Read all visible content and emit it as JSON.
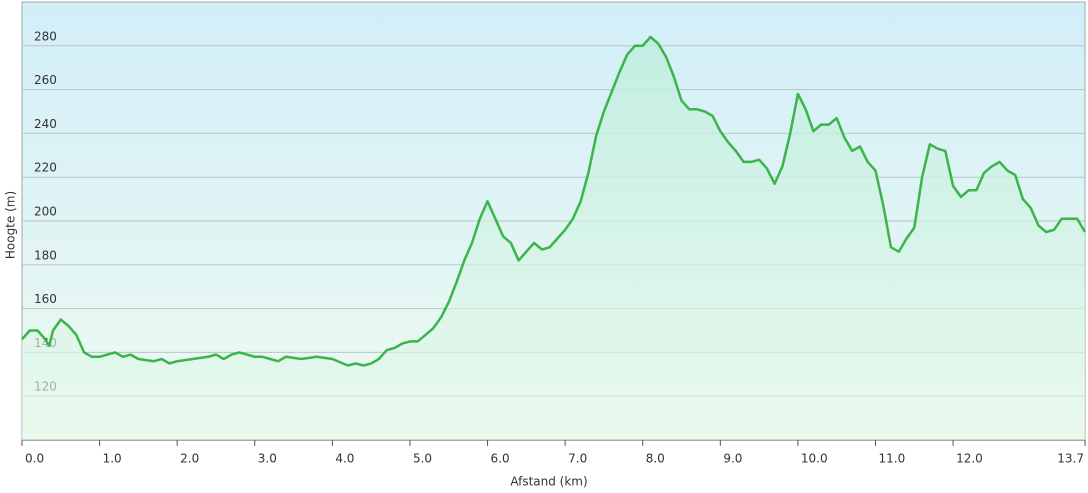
{
  "chart_data": {
    "type": "area",
    "xlabel": "Afstand  (km)",
    "ylabel": "Hoogte (m)",
    "color": "#3ab54a",
    "grid": true,
    "xlim": [
      0,
      13.7
    ],
    "ylim": [
      100,
      300
    ],
    "yticks": [
      120,
      140,
      160,
      180,
      200,
      220,
      240,
      260,
      280
    ],
    "xticks": [
      {
        "value": 0,
        "label": "0.0"
      },
      {
        "value": 1,
        "label": "1.0"
      },
      {
        "value": 2,
        "label": "2.0"
      },
      {
        "value": 3,
        "label": "3.0"
      },
      {
        "value": 4,
        "label": "4.0"
      },
      {
        "value": 5,
        "label": "5.0"
      },
      {
        "value": 6,
        "label": "6.0"
      },
      {
        "value": 7,
        "label": "7.0"
      },
      {
        "value": 8,
        "label": "8.0"
      },
      {
        "value": 9,
        "label": "9.0"
      },
      {
        "value": 10,
        "label": "10.0"
      },
      {
        "value": 11,
        "label": "11.0"
      },
      {
        "value": 12,
        "label": "12.0"
      },
      {
        "value": 13.7,
        "label": "13.7"
      }
    ],
    "x": [
      0.0,
      0.1,
      0.2,
      0.3,
      0.35,
      0.4,
      0.5,
      0.6,
      0.7,
      0.8,
      0.9,
      1.0,
      1.1,
      1.2,
      1.3,
      1.4,
      1.5,
      1.7,
      1.8,
      1.9,
      2.0,
      2.2,
      2.4,
      2.5,
      2.6,
      2.7,
      2.8,
      3.0,
      3.1,
      3.2,
      3.3,
      3.4,
      3.6,
      3.8,
      4.0,
      4.2,
      4.3,
      4.4,
      4.5,
      4.6,
      4.7,
      4.8,
      4.9,
      5.0,
      5.1,
      5.2,
      5.3,
      5.4,
      5.5,
      5.6,
      5.7,
      5.8,
      5.9,
      6.0,
      6.1,
      6.2,
      6.3,
      6.4,
      6.5,
      6.6,
      6.7,
      6.8,
      6.9,
      7.0,
      7.1,
      7.2,
      7.3,
      7.4,
      7.5,
      7.6,
      7.7,
      7.8,
      7.9,
      8.0,
      8.1,
      8.2,
      8.3,
      8.4,
      8.5,
      8.6,
      8.7,
      8.8,
      8.9,
      9.0,
      9.1,
      9.2,
      9.3,
      9.4,
      9.5,
      9.6,
      9.7,
      9.8,
      9.9,
      10.0,
      10.1,
      10.2,
      10.3,
      10.4,
      10.5,
      10.6,
      10.7,
      10.8,
      10.9,
      11.0,
      11.1,
      11.2,
      11.3,
      11.4,
      11.5,
      11.6,
      11.7,
      11.8,
      11.9,
      12.0,
      12.1,
      12.2,
      12.3,
      12.4,
      12.5,
      12.6,
      12.7,
      12.8,
      12.9,
      13.0,
      13.1,
      13.2,
      13.3,
      13.4,
      13.5,
      13.6,
      13.7
    ],
    "values": [
      146,
      150,
      150,
      146,
      143,
      150,
      155,
      152,
      148,
      140,
      138,
      138,
      139,
      140,
      138,
      139,
      137,
      136,
      137,
      135,
      136,
      137,
      138,
      139,
      137,
      139,
      140,
      138,
      138,
      137,
      136,
      138,
      137,
      138,
      137,
      134,
      135,
      134,
      135,
      137,
      141,
      142,
      144,
      145,
      145,
      148,
      151,
      156,
      163,
      172,
      182,
      190,
      201,
      209,
      201,
      193,
      190,
      182,
      186,
      190,
      187,
      188,
      192,
      196,
      201,
      209,
      222,
      239,
      250,
      259,
      268,
      276,
      280,
      280,
      284,
      281,
      275,
      266,
      255,
      251,
      251,
      250,
      248,
      241,
      236,
      232,
      227,
      227,
      228,
      224,
      217,
      225,
      240,
      258,
      251,
      241,
      244,
      244,
      247,
      238,
      232,
      234,
      227,
      223,
      207,
      188,
      186,
      192,
      197,
      220,
      235,
      233,
      232,
      216,
      211,
      214,
      214,
      222,
      225,
      227,
      223,
      221,
      210,
      206,
      198,
      195,
      196,
      201,
      201,
      201,
      195
    ]
  }
}
